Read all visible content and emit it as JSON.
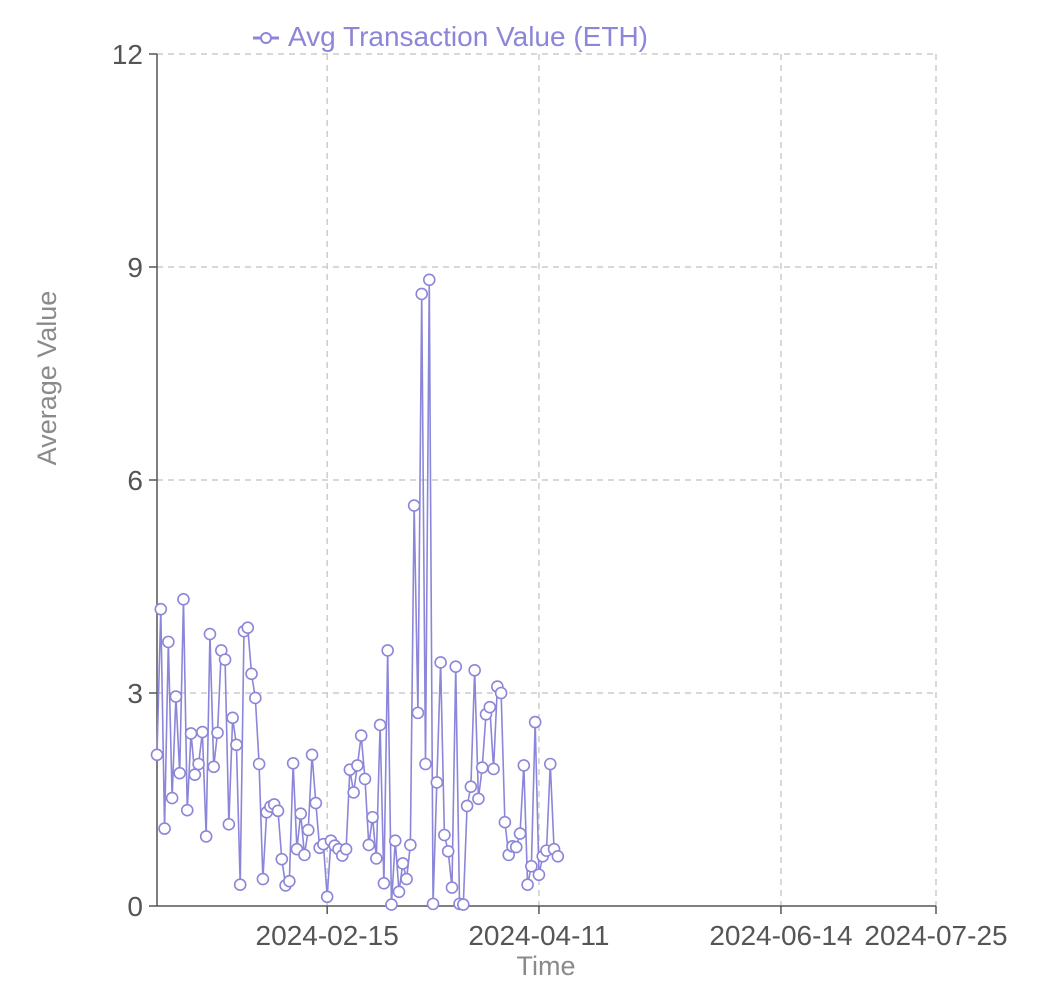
{
  "chart_data": {
    "type": "line",
    "xlabel": "Time",
    "ylabel": "Average Value",
    "ylim": [
      0,
      12
    ],
    "yticks": [
      "0",
      "3",
      "6",
      "9",
      "12"
    ],
    "xlim": [
      "2024-01-01",
      "2024-07-25"
    ],
    "xticks": [
      "2024-02-15",
      "2024-04-11",
      "2024-06-14",
      "2024-07-25"
    ],
    "grid": true,
    "legend_position": "top",
    "colors": {
      "series": "#8b86d9",
      "grid": "#cccccc",
      "axis": "#555555"
    },
    "series": [
      {
        "name": "Avg Transaction Value (ETH)",
        "marker": "open-circle",
        "points": [
          [
            "2024-01-01",
            2.13
          ],
          [
            "2024-01-02",
            4.18
          ],
          [
            "2024-01-03",
            1.09
          ],
          [
            "2024-01-04",
            3.72
          ],
          [
            "2024-01-05",
            1.52
          ],
          [
            "2024-01-06",
            2.95
          ],
          [
            "2024-01-07",
            1.87
          ],
          [
            "2024-01-08",
            4.32
          ],
          [
            "2024-01-09",
            1.35
          ],
          [
            "2024-01-10",
            2.43
          ],
          [
            "2024-01-11",
            1.85
          ],
          [
            "2024-01-12",
            2.0
          ],
          [
            "2024-01-13",
            2.45
          ],
          [
            "2024-01-14",
            0.98
          ],
          [
            "2024-01-15",
            3.83
          ],
          [
            "2024-01-16",
            1.96
          ],
          [
            "2024-01-17",
            2.44
          ],
          [
            "2024-01-18",
            3.6
          ],
          [
            "2024-01-19",
            3.47
          ],
          [
            "2024-01-20",
            1.15
          ],
          [
            "2024-01-21",
            2.65
          ],
          [
            "2024-01-22",
            2.27
          ],
          [
            "2024-01-23",
            0.3
          ],
          [
            "2024-01-24",
            3.87
          ],
          [
            "2024-01-25",
            3.92
          ],
          [
            "2024-01-26",
            3.27
          ],
          [
            "2024-01-27",
            2.93
          ],
          [
            "2024-01-28",
            2.0
          ],
          [
            "2024-01-29",
            0.38
          ],
          [
            "2024-01-30",
            1.32
          ],
          [
            "2024-01-31",
            1.4
          ],
          [
            "2024-02-01",
            1.43
          ],
          [
            "2024-02-02",
            1.34
          ],
          [
            "2024-02-03",
            0.66
          ],
          [
            "2024-02-04",
            0.29
          ],
          [
            "2024-02-05",
            0.35
          ],
          [
            "2024-02-06",
            2.01
          ],
          [
            "2024-02-07",
            0.8
          ],
          [
            "2024-02-08",
            1.3
          ],
          [
            "2024-02-09",
            0.72
          ],
          [
            "2024-02-10",
            1.07
          ],
          [
            "2024-02-11",
            2.13
          ],
          [
            "2024-02-12",
            1.45
          ],
          [
            "2024-02-13",
            0.82
          ],
          [
            "2024-02-14",
            0.87
          ],
          [
            "2024-02-15",
            0.13
          ],
          [
            "2024-02-16",
            0.92
          ],
          [
            "2024-02-17",
            0.85
          ],
          [
            "2024-02-18",
            0.8
          ],
          [
            "2024-02-19",
            0.71
          ],
          [
            "2024-02-20",
            0.8
          ],
          [
            "2024-02-21",
            1.92
          ],
          [
            "2024-02-22",
            1.6
          ],
          [
            "2024-02-23",
            1.98
          ],
          [
            "2024-02-24",
            2.4
          ],
          [
            "2024-02-25",
            1.79
          ],
          [
            "2024-02-26",
            0.86
          ],
          [
            "2024-02-27",
            1.25
          ],
          [
            "2024-02-28",
            0.67
          ],
          [
            "2024-02-29",
            2.55
          ],
          [
            "2024-03-01",
            0.32
          ],
          [
            "2024-03-02",
            3.6
          ],
          [
            "2024-03-03",
            0.02
          ],
          [
            "2024-03-04",
            0.92
          ],
          [
            "2024-03-05",
            0.2
          ],
          [
            "2024-03-06",
            0.6
          ],
          [
            "2024-03-07",
            0.38
          ],
          [
            "2024-03-08",
            0.86
          ],
          [
            "2024-03-09",
            5.64
          ],
          [
            "2024-03-10",
            2.72
          ],
          [
            "2024-03-11",
            8.62
          ],
          [
            "2024-03-12",
            2.0
          ],
          [
            "2024-03-13",
            8.82
          ],
          [
            "2024-03-14",
            0.03
          ],
          [
            "2024-03-15",
            1.74
          ],
          [
            "2024-03-16",
            3.43
          ],
          [
            "2024-03-17",
            1.0
          ],
          [
            "2024-03-18",
            0.77
          ],
          [
            "2024-03-19",
            0.26
          ],
          [
            "2024-03-20",
            3.37
          ],
          [
            "2024-03-21",
            0.03
          ],
          [
            "2024-03-22",
            0.02
          ],
          [
            "2024-03-23",
            1.41
          ],
          [
            "2024-03-24",
            1.68
          ],
          [
            "2024-03-25",
            3.32
          ],
          [
            "2024-03-26",
            1.51
          ],
          [
            "2024-03-27",
            1.95
          ],
          [
            "2024-03-28",
            2.7
          ],
          [
            "2024-03-29",
            2.8
          ],
          [
            "2024-03-30",
            1.93
          ],
          [
            "2024-03-31",
            3.09
          ],
          [
            "2024-04-01",
            3.0
          ],
          [
            "2024-04-02",
            1.18
          ],
          [
            "2024-04-03",
            0.72
          ],
          [
            "2024-04-04",
            0.84
          ],
          [
            "2024-04-05",
            0.83
          ],
          [
            "2024-04-06",
            1.02
          ],
          [
            "2024-04-07",
            1.98
          ],
          [
            "2024-04-08",
            0.3
          ],
          [
            "2024-04-09",
            0.56
          ],
          [
            "2024-04-10",
            2.59
          ],
          [
            "2024-04-11",
            0.44
          ],
          [
            "2024-04-12",
            0.7
          ],
          [
            "2024-04-13",
            0.78
          ],
          [
            "2024-04-14",
            2.0
          ],
          [
            "2024-04-15",
            0.8
          ],
          [
            "2024-04-16",
            0.7
          ]
        ]
      }
    ]
  }
}
